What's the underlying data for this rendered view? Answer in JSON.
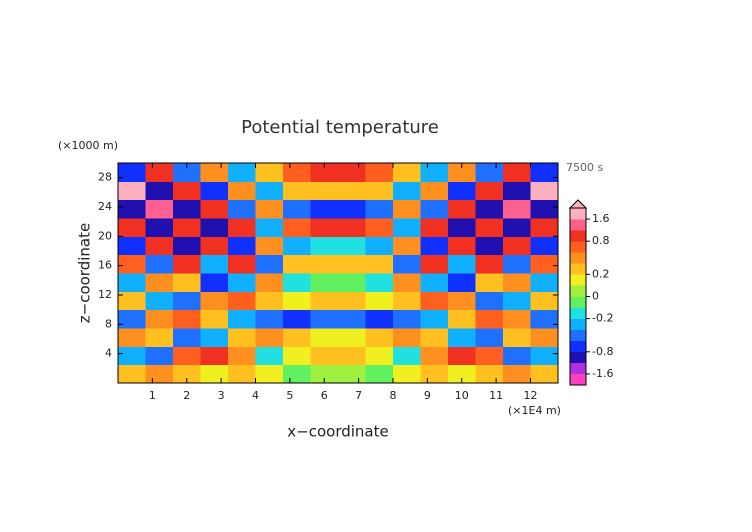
{
  "chart_data": {
    "type": "contour",
    "title": "Potential temperature",
    "x_label": "x−coordinate",
    "y_label": "z−coordinate",
    "x_unit": "(×1E4 m)",
    "y_unit": "(×1000 m)",
    "time_label": "7500 s",
    "xlim": [
      0,
      12.8
    ],
    "ylim": [
      0,
      30
    ],
    "xticks": [
      1,
      2,
      3,
      4,
      5,
      6,
      7,
      8,
      9,
      10,
      11,
      12
    ],
    "yticks": [
      4,
      8,
      12,
      16,
      20,
      24,
      28
    ],
    "x": [
      0.4,
      1.2,
      2.0,
      2.8,
      3.6,
      4.4,
      5.2,
      6.0,
      6.8,
      7.6,
      8.4,
      9.2,
      10.0,
      10.8,
      11.6,
      12.4
    ],
    "y": [
      1.25,
      3.75,
      6.25,
      8.75,
      11.25,
      13.75,
      16.25,
      18.75,
      21.25,
      23.75,
      26.25,
      28.75
    ],
    "values": [
      [
        0.3,
        0.5,
        0.2,
        0.1,
        0.3,
        0.1,
        -0.1,
        0.0,
        0.0,
        -0.1,
        0.1,
        0.3,
        0.1,
        0.2,
        0.5,
        0.3
      ],
      [
        -0.3,
        -0.6,
        0.6,
        0.8,
        0.4,
        -0.2,
        0.1,
        0.2,
        0.2,
        0.1,
        -0.2,
        0.4,
        0.8,
        0.6,
        -0.6,
        -0.3
      ],
      [
        0.5,
        0.2,
        -0.6,
        -0.4,
        0.2,
        0.5,
        0.3,
        0.1,
        0.1,
        0.3,
        0.5,
        0.2,
        -0.4,
        -0.6,
        0.2,
        0.5
      ],
      [
        -0.5,
        0.4,
        0.6,
        0.3,
        -0.3,
        -0.6,
        -0.7,
        -0.5,
        -0.5,
        -0.7,
        -0.6,
        -0.3,
        0.3,
        0.6,
        0.4,
        -0.5
      ],
      [
        0.3,
        -0.3,
        -0.6,
        0.5,
        0.6,
        0.2,
        0.1,
        0.2,
        0.2,
        0.1,
        0.2,
        0.6,
        0.5,
        -0.6,
        -0.3,
        0.3
      ],
      [
        -0.4,
        0.5,
        0.3,
        -0.7,
        -0.3,
        0.4,
        -0.2,
        -0.1,
        -0.1,
        -0.2,
        0.4,
        -0.3,
        -0.7,
        0.3,
        0.5,
        -0.4
      ],
      [
        0.6,
        -0.6,
        0.8,
        -0.4,
        0.9,
        -0.5,
        0.3,
        0.2,
        0.2,
        0.3,
        -0.5,
        0.9,
        -0.4,
        0.8,
        -0.6,
        0.6
      ],
      [
        -0.8,
        0.9,
        -0.9,
        1.0,
        -0.8,
        0.5,
        -0.3,
        -0.2,
        -0.2,
        -0.3,
        0.5,
        -0.8,
        1.0,
        -0.9,
        0.9,
        -0.8
      ],
      [
        1.0,
        -1.0,
        1.0,
        -1.1,
        0.8,
        -0.4,
        0.6,
        0.9,
        0.9,
        0.6,
        -0.4,
        0.8,
        -1.1,
        1.0,
        -1.0,
        1.0
      ],
      [
        -1.2,
        1.2,
        -1.1,
        0.9,
        -0.6,
        0.4,
        -0.5,
        -0.7,
        -0.7,
        -0.5,
        0.4,
        -0.6,
        0.9,
        -1.1,
        1.2,
        -1.2
      ],
      [
        1.8,
        -1.0,
        0.9,
        -0.7,
        0.5,
        -0.3,
        0.2,
        0.3,
        0.3,
        0.2,
        -0.3,
        0.5,
        -0.7,
        0.9,
        -1.0,
        1.8
      ],
      [
        -0.8,
        0.9,
        -0.6,
        0.5,
        -0.3,
        0.2,
        0.6,
        0.8,
        0.8,
        0.6,
        0.2,
        -0.3,
        0.5,
        -0.6,
        0.9,
        -0.8
      ]
    ],
    "levels": [
      -2.0,
      -1.6,
      -1.2,
      -0.8,
      -0.6,
      -0.4,
      -0.2,
      -0.1,
      0,
      0.1,
      0.2,
      0.4,
      0.6,
      0.8,
      1.2,
      1.6,
      2.0
    ],
    "colors": [
      "#ff40c0",
      "#b030e0",
      "#2010b0",
      "#1030ff",
      "#2070ff",
      "#10b0ff",
      "#20e0e0",
      "#60f060",
      "#a0f040",
      "#f0f020",
      "#ffc020",
      "#ff9020",
      "#ff6020",
      "#f03020",
      "#ff6090",
      "#ffb0c0"
    ],
    "colorbar_ticks": [
      1.6,
      0.8,
      0.2,
      0,
      -0.2,
      -0.8,
      -1.6
    ]
  }
}
